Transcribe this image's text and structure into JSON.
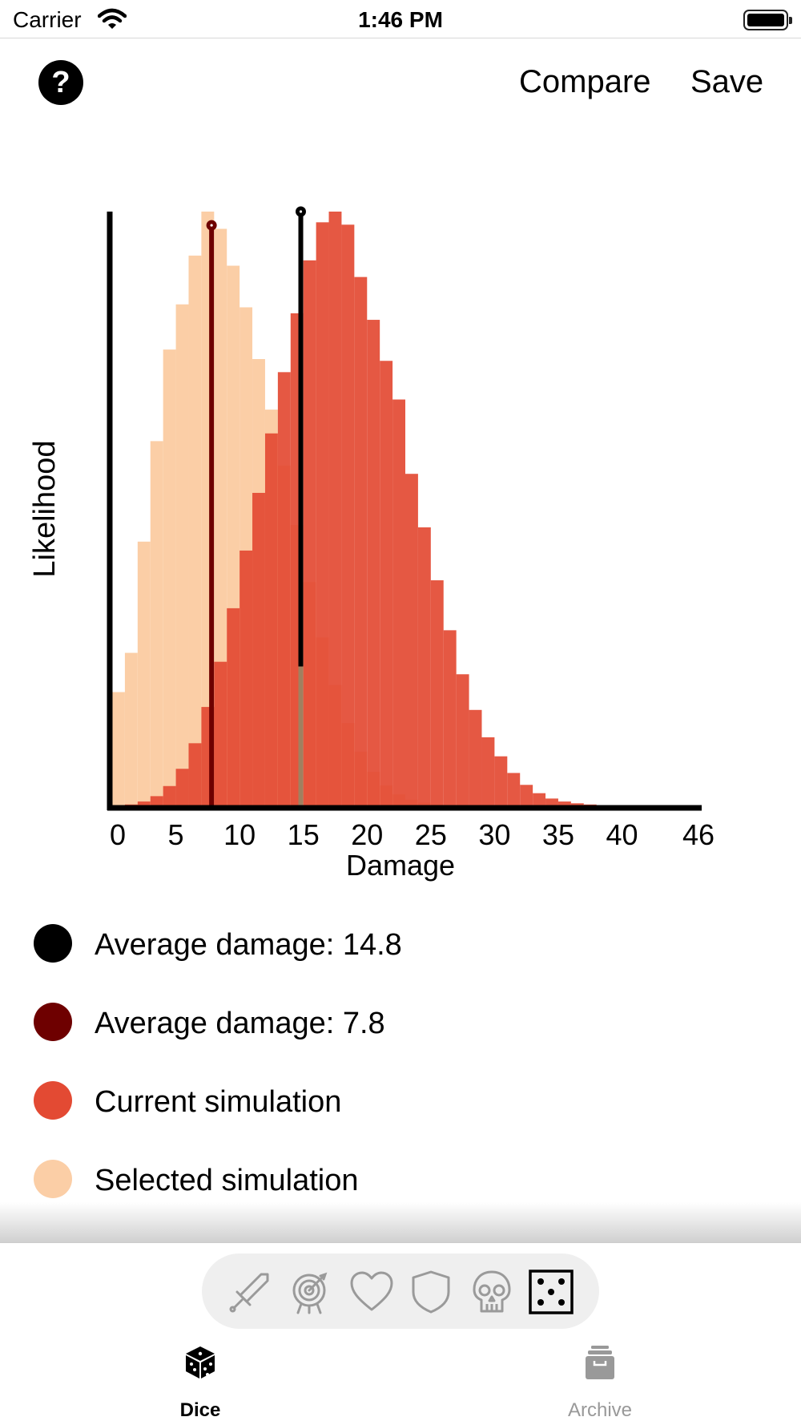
{
  "status_bar": {
    "carrier": "Carrier",
    "time": "1:46 PM"
  },
  "nav": {
    "help_label": "?",
    "compare_label": "Compare",
    "save_label": "Save"
  },
  "chart_data": {
    "type": "bar",
    "title": "",
    "xlabel": "Damage",
    "ylabel": "Likelihood",
    "xlim": [
      0,
      46
    ],
    "x_ticks": [
      "0",
      "5",
      "10",
      "15",
      "20",
      "25",
      "30",
      "35",
      "40",
      "46"
    ],
    "tick_values": [
      0,
      5,
      10,
      15,
      20,
      25,
      30,
      35,
      40,
      46
    ],
    "series": [
      {
        "name": "Selected simulation",
        "color": "#FBCEA6",
        "values": [
          0.192,
          0.258,
          0.445,
          0.614,
          0.768,
          0.844,
          0.926,
          1.0,
          0.971,
          0.909,
          0.839,
          0.752,
          0.667,
          0.573,
          0.473,
          0.377,
          0.284,
          0.204,
          0.14,
          0.092,
          0.058,
          0.035,
          0.02,
          0.011,
          0.006,
          0.003,
          0.001,
          0.0,
          0.0,
          0.0,
          0.0,
          0.0,
          0.0,
          0.0,
          0.0,
          0.0,
          0.0,
          0.0,
          0.0,
          0.0,
          0.0,
          0.0,
          0.0,
          0.0,
          0.0,
          0.0
        ]
      },
      {
        "name": "Current simulation",
        "color": "#E34A33",
        "values": [
          0.0,
          0.003,
          0.008,
          0.017,
          0.034,
          0.063,
          0.106,
          0.167,
          0.243,
          0.333,
          0.43,
          0.527,
          0.627,
          0.73,
          0.829,
          0.918,
          0.982,
          1.0,
          0.978,
          0.89,
          0.818,
          0.749,
          0.684,
          0.559,
          0.469,
          0.38,
          0.296,
          0.222,
          0.162,
          0.116,
          0.084,
          0.056,
          0.036,
          0.022,
          0.013,
          0.008,
          0.005,
          0.003,
          0.002,
          0.001,
          0.001,
          0.0,
          0.0,
          0.0,
          0.0,
          0.0
        ]
      }
    ],
    "averages": [
      {
        "name": "Current average",
        "value": 14.8,
        "color": "#000000"
      },
      {
        "name": "Selected average",
        "value": 7.8,
        "color": "#6E0000"
      }
    ]
  },
  "legend": [
    {
      "label": "Average damage: 14.8",
      "color": "#000000"
    },
    {
      "label": "Average damage: 7.8",
      "color": "#6E0000"
    },
    {
      "label": "Current simulation",
      "color": "#E34A33"
    },
    {
      "label": "Selected simulation",
      "color": "#FBCEA6"
    }
  ],
  "tabs": {
    "dice": {
      "label": "Dice"
    },
    "archive": {
      "label": "Archive"
    }
  },
  "tools": [
    "sword-icon",
    "target-icon",
    "heart-icon",
    "shield-icon",
    "skull-icon",
    "dice-five-icon"
  ]
}
